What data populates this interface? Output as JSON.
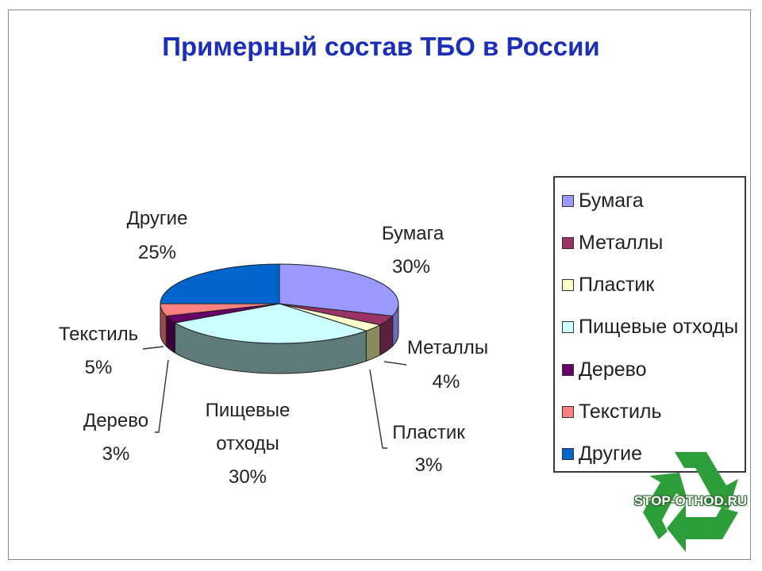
{
  "chart_data": {
    "type": "pie",
    "title": "Примерный состав ТБО в России",
    "slices": [
      {
        "name": "Бумага",
        "value": 30,
        "label_name": "Бумага",
        "label_value": "30%",
        "color": "#9999ff",
        "side": "#6b6bc4"
      },
      {
        "name": "Металлы",
        "value": 4,
        "label_name": "Металлы",
        "label_value": "4%",
        "color": "#993366",
        "side": "#5c1f3e"
      },
      {
        "name": "Пластик",
        "value": 3,
        "label_name": "Пластик",
        "label_value": "3%",
        "color": "#ffffcc",
        "side": "#8a8a5c"
      },
      {
        "name": "Пищевые отходы",
        "value": 30,
        "label_name": "Пищевые отходы",
        "label_value": "30%",
        "color": "#ccffff",
        "side": "#5e7a7a"
      },
      {
        "name": "Дерево",
        "value": 3,
        "label_name": "Дерево",
        "label_value": "3%",
        "color": "#660066",
        "side": "#3a003a"
      },
      {
        "name": "Текстиль",
        "value": 5,
        "label_name": "Текстиль",
        "label_value": "5%",
        "color": "#ff8080",
        "side": "#a04848"
      },
      {
        "name": "Другие",
        "value": 25,
        "label_name": "Другие",
        "label_value": "25%",
        "color": "#0066cc",
        "side": "#003f80"
      }
    ],
    "legend_position": "right"
  },
  "labels": {
    "paper_1": "Бумага",
    "paper_2": "30%",
    "metal_1": "Металлы",
    "metal_2": "4%",
    "plastic_1": "Пластик",
    "plastic_2": "3%",
    "food_1": "Пищевые",
    "food_2": "отходы",
    "food_3": "30%",
    "wood_1": "Дерево",
    "wood_2": "3%",
    "textile_1": "Текстиль",
    "textile_2": "5%",
    "other_1": "Другие",
    "other_2": "25%"
  },
  "logo": {
    "text": "STOP-OTHOD.RU",
    "color": "#2e9e3a"
  }
}
